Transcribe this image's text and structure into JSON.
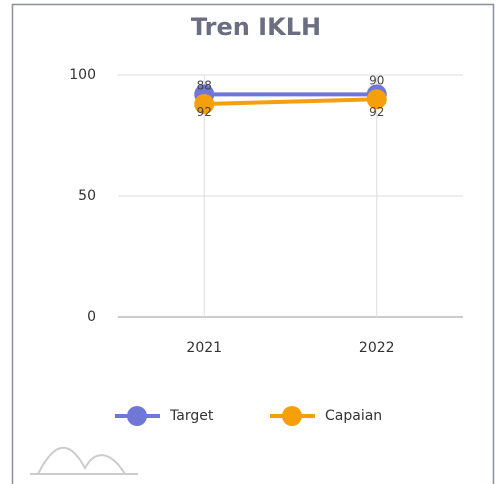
{
  "chart_data": {
    "type": "line",
    "title": "Tren IKLH",
    "categories": [
      "2021",
      "2022"
    ],
    "series": [
      {
        "name": "Target",
        "color": "#6f77d9",
        "values": [
          92,
          92
        ]
      },
      {
        "name": "Capaian",
        "color": "#f59f0b",
        "values": [
          88,
          90
        ]
      }
    ],
    "ylim": [
      0,
      100
    ],
    "yticks": [
      0,
      50,
      100
    ],
    "grid": true,
    "legend": "bottom"
  }
}
